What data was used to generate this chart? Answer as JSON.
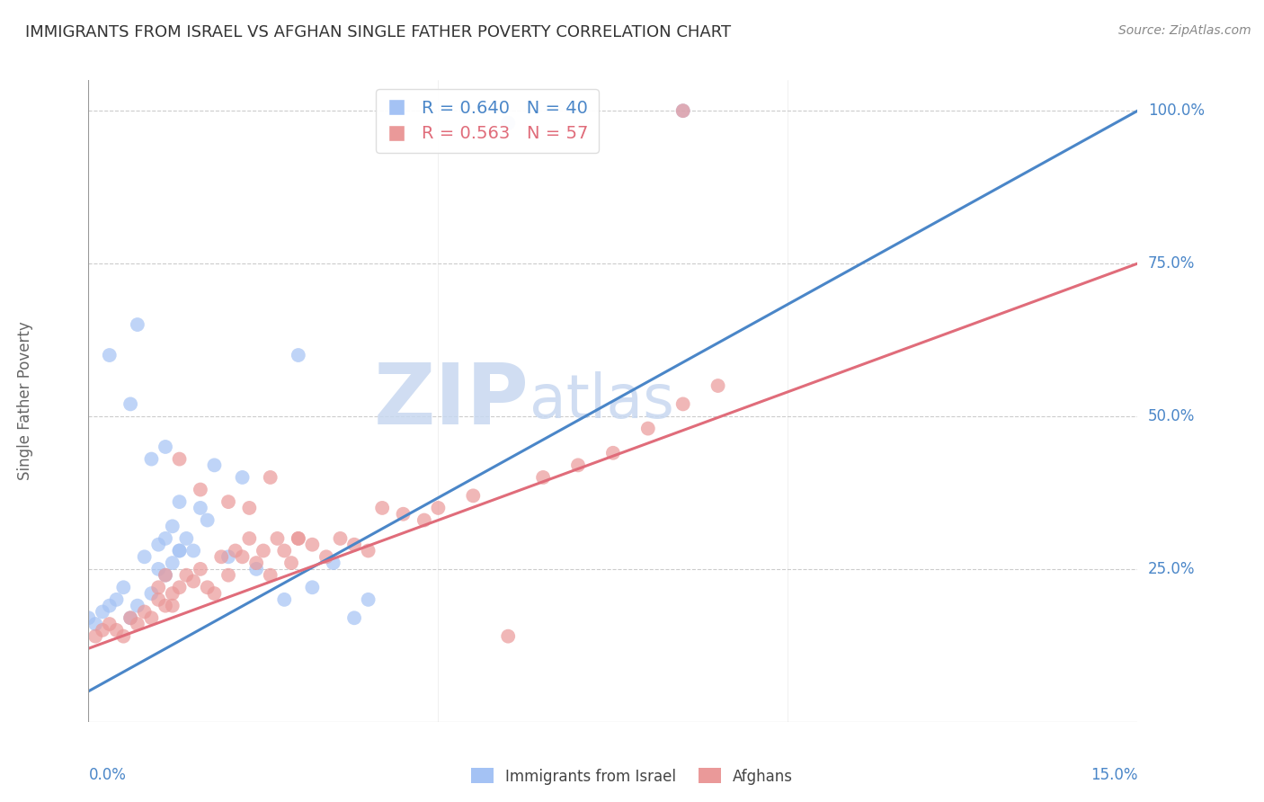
{
  "title": "IMMIGRANTS FROM ISRAEL VS AFGHAN SINGLE FATHER POVERTY CORRELATION CHART",
  "source": "Source: ZipAtlas.com",
  "ylabel": "Single Father Poverty",
  "yticks": [
    "100.0%",
    "75.0%",
    "50.0%",
    "25.0%"
  ],
  "ytick_vals": [
    1.0,
    0.75,
    0.5,
    0.25
  ],
  "xtick_labels": [
    "0.0%",
    "15.0%"
  ],
  "xtick_vals": [
    0.0,
    0.15
  ],
  "xmin": 0.0,
  "xmax": 0.15,
  "ymin": 0.0,
  "ymax": 1.05,
  "israel_R": 0.64,
  "israel_N": 40,
  "afghan_R": 0.563,
  "afghan_N": 57,
  "israel_color": "#a4c2f4",
  "afghan_color": "#ea9999",
  "israel_line_color": "#4a86c8",
  "afghan_line_color": "#e06c7a",
  "watermark_zip": "ZIP",
  "watermark_atlas": "atlas",
  "watermark_color": "#c8d8f0",
  "israel_x": [
    0.0,
    0.001,
    0.002,
    0.003,
    0.004,
    0.005,
    0.006,
    0.007,
    0.008,
    0.009,
    0.01,
    0.01,
    0.011,
    0.011,
    0.012,
    0.012,
    0.013,
    0.013,
    0.014,
    0.015,
    0.016,
    0.017,
    0.018,
    0.02,
    0.022,
    0.024,
    0.028,
    0.03,
    0.032,
    0.035,
    0.038,
    0.04,
    0.003,
    0.006,
    0.007,
    0.009,
    0.011,
    0.013,
    0.06,
    0.085
  ],
  "israel_y": [
    0.17,
    0.16,
    0.18,
    0.19,
    0.2,
    0.22,
    0.17,
    0.19,
    0.27,
    0.21,
    0.25,
    0.29,
    0.24,
    0.3,
    0.26,
    0.32,
    0.28,
    0.36,
    0.3,
    0.28,
    0.35,
    0.33,
    0.42,
    0.27,
    0.4,
    0.25,
    0.2,
    0.6,
    0.22,
    0.26,
    0.17,
    0.2,
    0.6,
    0.52,
    0.65,
    0.43,
    0.45,
    0.28,
    0.98,
    1.0
  ],
  "afghan_x": [
    0.001,
    0.002,
    0.003,
    0.004,
    0.005,
    0.006,
    0.007,
    0.008,
    0.009,
    0.01,
    0.01,
    0.011,
    0.011,
    0.012,
    0.012,
    0.013,
    0.014,
    0.015,
    0.016,
    0.017,
    0.018,
    0.019,
    0.02,
    0.021,
    0.022,
    0.023,
    0.024,
    0.025,
    0.026,
    0.027,
    0.028,
    0.029,
    0.03,
    0.032,
    0.034,
    0.036,
    0.038,
    0.04,
    0.042,
    0.045,
    0.048,
    0.05,
    0.055,
    0.06,
    0.065,
    0.07,
    0.075,
    0.08,
    0.085,
    0.09,
    0.013,
    0.016,
    0.02,
    0.023,
    0.026,
    0.03,
    0.085
  ],
  "afghan_y": [
    0.14,
    0.15,
    0.16,
    0.15,
    0.14,
    0.17,
    0.16,
    0.18,
    0.17,
    0.2,
    0.22,
    0.19,
    0.24,
    0.21,
    0.19,
    0.22,
    0.24,
    0.23,
    0.25,
    0.22,
    0.21,
    0.27,
    0.24,
    0.28,
    0.27,
    0.3,
    0.26,
    0.28,
    0.24,
    0.3,
    0.28,
    0.26,
    0.3,
    0.29,
    0.27,
    0.3,
    0.29,
    0.28,
    0.35,
    0.34,
    0.33,
    0.35,
    0.37,
    0.14,
    0.4,
    0.42,
    0.44,
    0.48,
    0.52,
    0.55,
    0.43,
    0.38,
    0.36,
    0.35,
    0.4,
    0.3,
    1.0
  ],
  "israel_line_x0": 0.0,
  "israel_line_y0": 0.05,
  "israel_line_x1": 0.15,
  "israel_line_y1": 1.0,
  "afghan_line_x0": 0.0,
  "afghan_line_y0": 0.12,
  "afghan_line_x1": 0.15,
  "afghan_line_y1": 0.75,
  "background_color": "#ffffff",
  "grid_color": "#cccccc",
  "tick_label_color": "#4a86c8",
  "title_color": "#333333",
  "ylabel_color": "#666666"
}
